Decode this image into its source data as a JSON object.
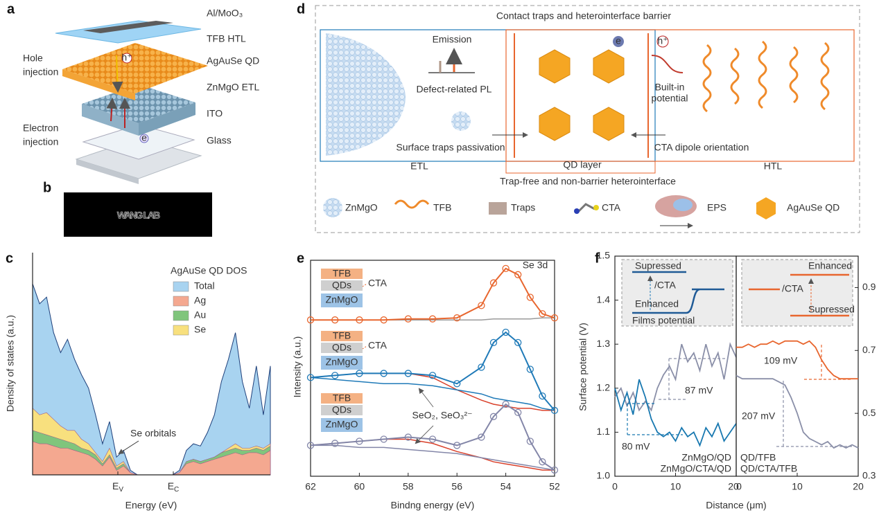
{
  "panel_labels": [
    "a",
    "b",
    "c",
    "d",
    "e",
    "f"
  ],
  "panel_a": {
    "layers": [
      "Al/MoO₃",
      "TFB HTL",
      "AgAuSe QD",
      "ZnMgO ETL",
      "ITO",
      "Glass"
    ],
    "hole_injection": [
      "Hole",
      "injection"
    ],
    "electron_injection": [
      "Electron",
      "injection"
    ],
    "hole": "h⁺",
    "electron": "e"
  },
  "panel_b": {
    "text": "WANG LAB"
  },
  "panel_c": {
    "type": "area",
    "legend_title": "AgAuSe QD DOS",
    "ylabel": "Density of states (a.u.)",
    "xlabel": "Energy (eV)",
    "xtick_labels": [
      {
        "main": "E",
        "sub": "V"
      },
      {
        "main": "E",
        "sub": "C"
      }
    ],
    "annotation": "Se orbitals",
    "ylim": [
      0,
      100
    ],
    "series": [
      {
        "name": "Total",
        "color": "#a8d3f0",
        "values": [
          86,
          77,
          80,
          64,
          55,
          61,
          52,
          45,
          39,
          27,
          14,
          24,
          8,
          11,
          2,
          0,
          0,
          0,
          0,
          0,
          0,
          2,
          11,
          14,
          13,
          19,
          27,
          42,
          52,
          64,
          42,
          30,
          49,
          27,
          49
        ]
      },
      {
        "name": "Ag",
        "color": "#f4a890",
        "values": [
          15,
          14,
          14,
          13,
          12,
          12,
          11,
          10,
          9,
          7,
          4,
          8,
          2,
          4,
          1,
          0,
          0,
          0,
          0,
          0,
          0,
          1,
          5,
          6,
          5,
          6,
          7,
          8,
          9,
          10,
          9,
          10,
          10,
          9,
          11
        ]
      },
      {
        "name": "Au",
        "color": "#80c57c",
        "values": [
          20,
          19,
          18,
          17,
          16,
          15,
          14,
          12,
          11,
          9,
          5,
          9,
          3,
          5,
          1,
          0,
          0,
          0,
          0,
          0,
          0,
          1,
          6,
          7,
          6,
          7,
          8,
          10,
          11,
          12,
          11,
          11,
          12,
          11,
          13
        ]
      },
      {
        "name": "Se",
        "color": "#f8e07e",
        "values": [
          30,
          27,
          28,
          25,
          22,
          20,
          20,
          16,
          14,
          10,
          6,
          12,
          4,
          6,
          1,
          0,
          0,
          0,
          0,
          0,
          0,
          1,
          6,
          7,
          6,
          7,
          8,
          10,
          12,
          14,
          12,
          12,
          13,
          12,
          14
        ]
      }
    ]
  },
  "panel_d": {
    "top_title": "Contact traps and heterointerface barrier",
    "emission": "Emission",
    "defect_pl": "Defect-related PL",
    "built_in": [
      "Built-in",
      "potential"
    ],
    "surface_traps": "Surface traps passivation",
    "cta_dipole": "CTA dipole orientation",
    "etl": "ETL",
    "qd_layer": "QD layer",
    "htl": "HTL",
    "bottom_title": "Trap-free and non-barrier heterointerface",
    "hole": "h⁺",
    "electron": "e",
    "legend": [
      "ZnMgO",
      "TFB",
      "Traps",
      "CTA",
      "EPS",
      "AgAuSe QD"
    ]
  },
  "panel_e": {
    "type": "line",
    "annotation": "Se 3d",
    "peak_label": "SeO₂, SeO₃²⁻",
    "ylabel": "Intensity (a.u.)",
    "xlabel": "Bindng energy (eV)",
    "xlim": [
      62,
      52
    ],
    "xticks": [
      62,
      60,
      58,
      56,
      54,
      52
    ],
    "ylim": [
      -3,
      102
    ],
    "x": [
      62,
      61,
      60,
      59,
      58,
      57,
      56,
      55,
      54.5,
      54,
      53.5,
      53,
      52.5,
      52
    ],
    "spectra": [
      {
        "color": "#e8662e",
        "values": [
          73,
          73,
          73,
          73,
          73.5,
          73.5,
          74,
          80,
          91,
          98,
          95,
          84,
          76,
          74
        ],
        "lines": [
          {
            "color": "#9a9a9a",
            "values": [
              73,
              73,
              73,
              73,
              73,
              73,
              73,
              73,
              73.5,
              73.5,
              73.5,
              73.5,
              74,
              74
            ]
          }
        ],
        "inset": {
          "layers": [
            "TFB",
            "QDs",
            "ZnMgO"
          ],
          "cta": "CTA"
        }
      },
      {
        "color": "#1f7ab8",
        "values": [
          45,
          46,
          47,
          47,
          47,
          46,
          42,
          50,
          62,
          67,
          62,
          49,
          36,
          29
        ],
        "lines": [
          {
            "color": "#d9402a",
            "values": [
              45,
              46,
              47,
              47,
              47,
              45,
              39,
              34,
              32,
              31,
              30,
              30,
              29,
              29
            ]
          },
          {
            "color": "#1f7ab8",
            "values": [
              45,
              44,
              43,
              42,
              42,
              41,
              39,
              37,
              35,
              34,
              33,
              32,
              30,
              29
            ]
          }
        ],
        "inset": {
          "layers": [
            "TFB",
            "QDs",
            "ZnMgO"
          ],
          "cta": "CTA"
        }
      },
      {
        "color": "#8386a8",
        "values": [
          12,
          13,
          14,
          15,
          16,
          15,
          12,
          16,
          26,
          32,
          28,
          14,
          4,
          0
        ],
        "lines": [
          {
            "color": "#d9402a",
            "values": [
              12,
              13,
              14,
              15,
              15,
              13,
              9,
              6,
              4,
              3,
              2,
              1,
              0,
              0
            ]
          },
          {
            "color": "#8386a8",
            "values": [
              12,
              12,
              11,
              11,
              10,
              9,
              8,
              6,
              5,
              4,
              3,
              2,
              1,
              0
            ]
          }
        ],
        "inset": {
          "layers": [
            "TFB",
            "QDs",
            "ZnMgO"
          ]
        }
      }
    ]
  },
  "panel_f": {
    "type": "line",
    "ylabel": "Surface potential (V)",
    "xlabel": "Distance (μm)",
    "ylim": [
      1.0,
      1.5
    ],
    "yticks": [
      {
        "value": 1,
        "label": "1.0"
      },
      1.1,
      1.2,
      1.3,
      1.4,
      1.5
    ],
    "y2lim": [
      0.3,
      1.0
    ],
    "y2ticks": [
      0.3,
      0.5,
      0.7,
      0.9
    ],
    "subplots": [
      {
        "xlim": [
          0,
          20
        ],
        "xticks": [
          0,
          10,
          20
        ],
        "x": [
          0,
          1,
          2,
          3,
          4,
          5,
          6,
          7,
          8,
          9,
          10,
          11,
          12,
          13,
          14,
          15,
          16,
          17,
          18,
          19,
          20
        ],
        "series": [
          {
            "name": "ZnMgO/QD",
            "color": "#8a8fa8",
            "values": [
              1.18,
              1.2,
              1.16,
              1.19,
              1.15,
              1.17,
              1.15,
              1.2,
              1.23,
              1.25,
              1.22,
              1.3,
              1.26,
              1.28,
              1.24,
              1.3,
              1.25,
              1.28,
              1.22,
              1.3,
              1.27
            ]
          },
          {
            "name": "ZnMgO/CTA/QD",
            "color": "#1878b0",
            "values": [
              1.2,
              1.15,
              1.19,
              1.14,
              1.22,
              1.18,
              1.13,
              1.1,
              1.09,
              1.1,
              1.08,
              1.11,
              1.09,
              1.1,
              1.07,
              1.11,
              1.09,
              1.12,
              1.08,
              1.1,
              1.12
            ]
          }
        ],
        "annotations": [
          "87 mV",
          "80 mV"
        ],
        "inset": [
          "Supressed",
          "/CTA",
          "Enhanced",
          "Films potential"
        ]
      },
      {
        "xlim": [
          0,
          20
        ],
        "xticks": [
          0,
          10,
          20
        ],
        "x": [
          0,
          1,
          2,
          3,
          4,
          5,
          6,
          7,
          8,
          9,
          10,
          11,
          12,
          13,
          14,
          15,
          16,
          17,
          18,
          19,
          20
        ],
        "series": [
          {
            "name": "QD/TFB",
            "color": "#8a8fa8",
            "axis": "y2",
            "values": [
              0.62,
              0.61,
              0.61,
              0.61,
              0.61,
              0.61,
              0.61,
              0.6,
              0.59,
              0.55,
              0.5,
              0.44,
              0.42,
              0.41,
              0.4,
              0.41,
              0.39,
              0.4,
              0.39,
              0.4,
              0.39
            ]
          },
          {
            "name": "QD/CTA/TFB",
            "color": "#e8662e",
            "axis": "y2",
            "values": [
              0.71,
              0.71,
              0.72,
              0.71,
              0.72,
              0.72,
              0.73,
              0.72,
              0.73,
              0.73,
              0.73,
              0.72,
              0.73,
              0.71,
              0.67,
              0.64,
              0.62,
              0.61,
              0.61,
              0.61,
              0.61
            ]
          }
        ],
        "annotations": [
          "109 mV",
          "207 mV"
        ],
        "inset": [
          "Enhanced",
          "/CTA",
          "Supressed"
        ]
      }
    ]
  }
}
